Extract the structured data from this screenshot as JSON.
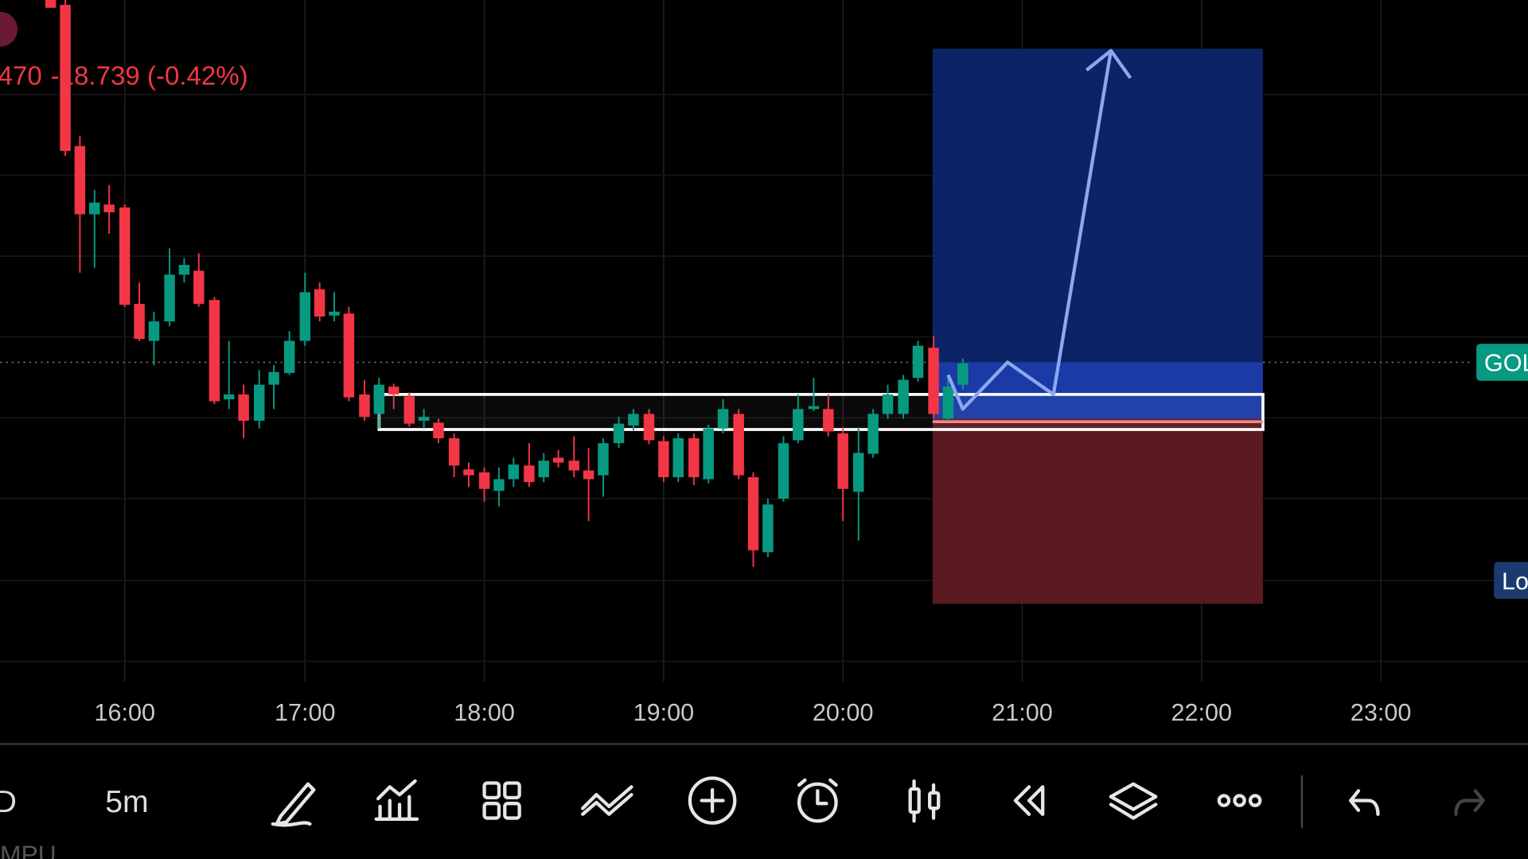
{
  "header": {
    "price_partial": "470",
    "change": "-18.739 (-0.42%)"
  },
  "time_axis": {
    "labels": [
      "16:00",
      "17:00",
      "18:00",
      "19:00",
      "20:00",
      "21:00",
      "22:00",
      "23:00"
    ]
  },
  "price_tags": {
    "symbol": "GOL",
    "lower": "Lo"
  },
  "toolbar": {
    "left_partial": "D",
    "interval": "5m",
    "bottom_partial": "MPU"
  }
}
